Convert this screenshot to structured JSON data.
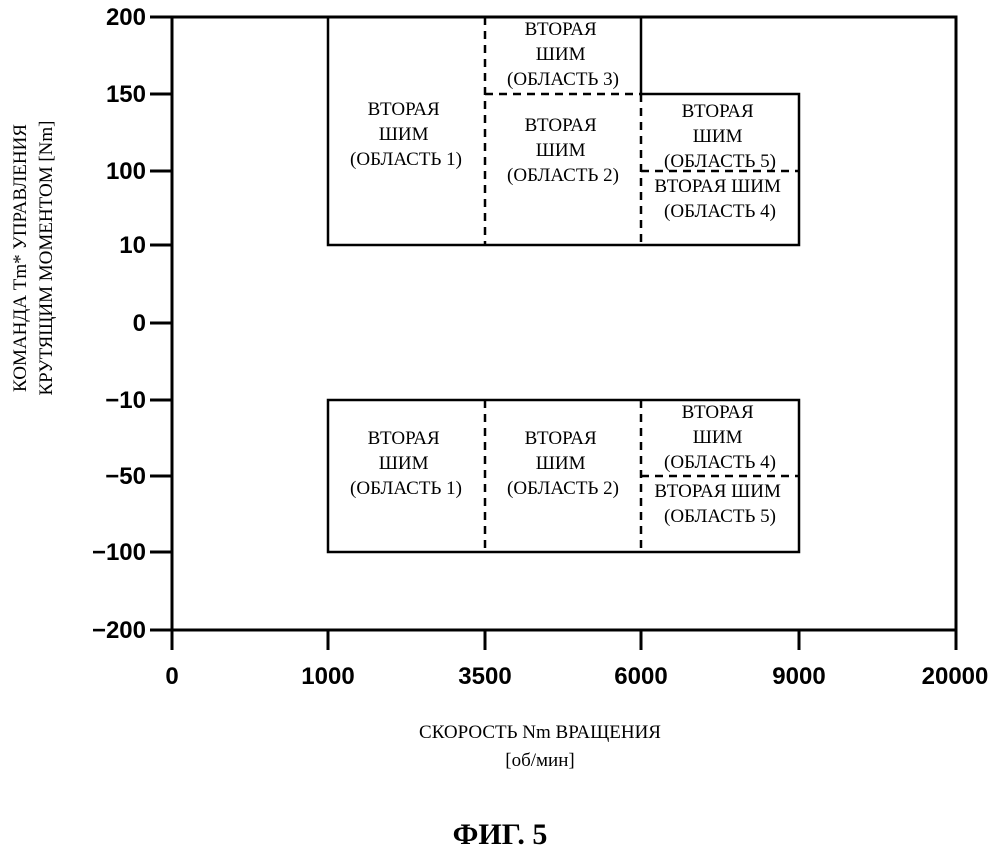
{
  "chart_data": {
    "type": "region_map",
    "title": "",
    "xlabel_lines": [
      "СКОРОСТЬ Nm ВРАЩЕНИЯ",
      "[об/мин]"
    ],
    "ylabel_lines": [
      "КОМАНДА Tm* УПРАВЛЕНИЯ",
      "КРУТЯЩИМ МОМЕНТОМ [Nm]"
    ],
    "x_ticks": [
      "0",
      "1000",
      "3500",
      "6000",
      "9000",
      "20000"
    ],
    "y_ticks": [
      "200",
      "150",
      "100",
      "10",
      "0",
      "−10",
      "−50",
      "−100",
      "−200"
    ],
    "x_scale": "categorical-equal-spacing",
    "y_scale": "categorical-equal-spacing",
    "regions": [
      {
        "x_range": [
          "1000",
          "3500"
        ],
        "y_range": [
          "10",
          "200"
        ],
        "lines": [
          "ВТОРАЯ",
          "ШИМ",
          "(ОБЛАСТЬ 1)"
        ]
      },
      {
        "x_range": [
          "3500",
          "6000"
        ],
        "y_range": [
          "150",
          "200"
        ],
        "lines": [
          "ВТОРАЯ",
          "ШИМ",
          "(ОБЛАСТЬ 3)"
        ]
      },
      {
        "x_range": [
          "3500",
          "6000"
        ],
        "y_range": [
          "10",
          "150"
        ],
        "lines": [
          "ВТОРАЯ",
          "ШИМ",
          "(ОБЛАСТЬ 2)"
        ]
      },
      {
        "x_range": [
          "6000",
          "9000"
        ],
        "y_range": [
          "100",
          "150"
        ],
        "lines": [
          "ВТОРАЯ",
          "ШИМ",
          "(ОБЛАСТЬ 5)"
        ]
      },
      {
        "x_range": [
          "6000",
          "9000"
        ],
        "y_range": [
          "10",
          "100"
        ],
        "lines": [
          "ВТОРАЯ ШИМ",
          "(ОБЛАСТЬ 4)"
        ]
      },
      {
        "x_range": [
          "1000",
          "3500"
        ],
        "y_range": [
          "-100",
          "-10"
        ],
        "lines": [
          "ВТОРАЯ",
          "ШИМ",
          "(ОБЛАСТЬ 1)"
        ]
      },
      {
        "x_range": [
          "3500",
          "6000"
        ],
        "y_range": [
          "-100",
          "-10"
        ],
        "lines": [
          "ВТОРАЯ",
          "ШИМ",
          "(ОБЛАСТЬ 2)"
        ]
      },
      {
        "x_range": [
          "6000",
          "9000"
        ],
        "y_range": [
          "-50",
          "-10"
        ],
        "lines": [
          "ВТОРАЯ",
          "ШИМ",
          "(ОБЛАСТЬ 4)"
        ]
      },
      {
        "x_range": [
          "6000",
          "9000"
        ],
        "y_range": [
          "-100",
          "-50"
        ],
        "lines": [
          "ВТОРАЯ ШИМ",
          "(ОБЛАСТЬ 5)"
        ]
      }
    ]
  },
  "figure_label": "ФИГ. 5"
}
